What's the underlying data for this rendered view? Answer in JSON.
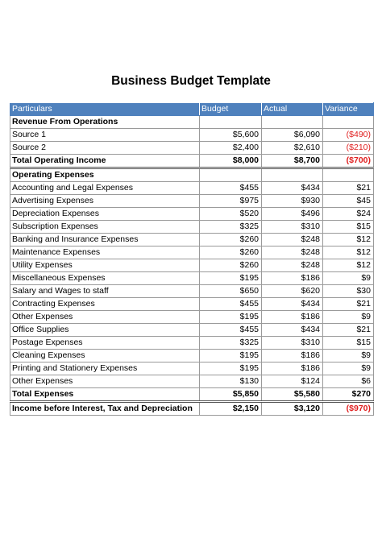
{
  "title": "Business Budget Template",
  "columns": [
    "Particulars",
    "Budget",
    "Actual",
    "Variance"
  ],
  "colors": {
    "header_bg": "#4f81bd",
    "negative": "#e02020"
  },
  "revenue": {
    "heading": "Revenue From Operations",
    "rows": [
      {
        "name": "Source 1",
        "budget": "$5,600",
        "actual": "$6,090",
        "variance": "($490)",
        "negative": true
      },
      {
        "name": "Source 2",
        "budget": "$2,400",
        "actual": "$2,610",
        "variance": "($210)",
        "negative": true
      }
    ],
    "total": {
      "name": "Total Operating Income",
      "budget": "$8,000",
      "actual": "$8,700",
      "variance": "($700)",
      "negative": true
    }
  },
  "expenses": {
    "heading": "Operating Expenses",
    "rows": [
      {
        "name": "Accounting and Legal Expenses",
        "budget": "$455",
        "actual": "$434",
        "variance": "$21"
      },
      {
        "name": "Advertising Expenses",
        "budget": "$975",
        "actual": "$930",
        "variance": "$45"
      },
      {
        "name": "Depreciation Expenses",
        "budget": "$520",
        "actual": "$496",
        "variance": "$24"
      },
      {
        "name": "Subscription Expenses",
        "budget": "$325",
        "actual": "$310",
        "variance": "$15"
      },
      {
        "name": "Banking and Insurance Expenses",
        "budget": "$260",
        "actual": "$248",
        "variance": "$12"
      },
      {
        "name": "Maintenance Expenses",
        "budget": "$260",
        "actual": "$248",
        "variance": "$12"
      },
      {
        "name": "Utility Expenses",
        "budget": "$260",
        "actual": "$248",
        "variance": "$12"
      },
      {
        "name": "Miscellaneous Expenses",
        "budget": "$195",
        "actual": "$186",
        "variance": "$9"
      },
      {
        "name": "Salary and Wages to staff",
        "budget": "$650",
        "actual": "$620",
        "variance": "$30"
      },
      {
        "name": "Contracting Expenses",
        "budget": "$455",
        "actual": "$434",
        "variance": "$21"
      },
      {
        "name": "Other Expenses",
        "budget": "$195",
        "actual": "$186",
        "variance": "$9"
      },
      {
        "name": "Office Supplies",
        "budget": "$455",
        "actual": "$434",
        "variance": "$21"
      },
      {
        "name": "Postage Expenses",
        "budget": "$325",
        "actual": "$310",
        "variance": "$15"
      },
      {
        "name": "Cleaning Expenses",
        "budget": "$195",
        "actual": "$186",
        "variance": "$9"
      },
      {
        "name": "Printing and Stationery Expenses",
        "budget": "$195",
        "actual": "$186",
        "variance": "$9"
      },
      {
        "name": "Other Expenses",
        "budget": "$130",
        "actual": "$124",
        "variance": "$6"
      }
    ],
    "total": {
      "name": "Total Expenses",
      "budget": "$5,850",
      "actual": "$5,580",
      "variance": "$270",
      "negative": false
    }
  },
  "income": {
    "name": "Income before Interest, Tax and Depreciation",
    "budget": "$2,150",
    "actual": "$3,120",
    "variance": "($970)",
    "negative": true
  }
}
